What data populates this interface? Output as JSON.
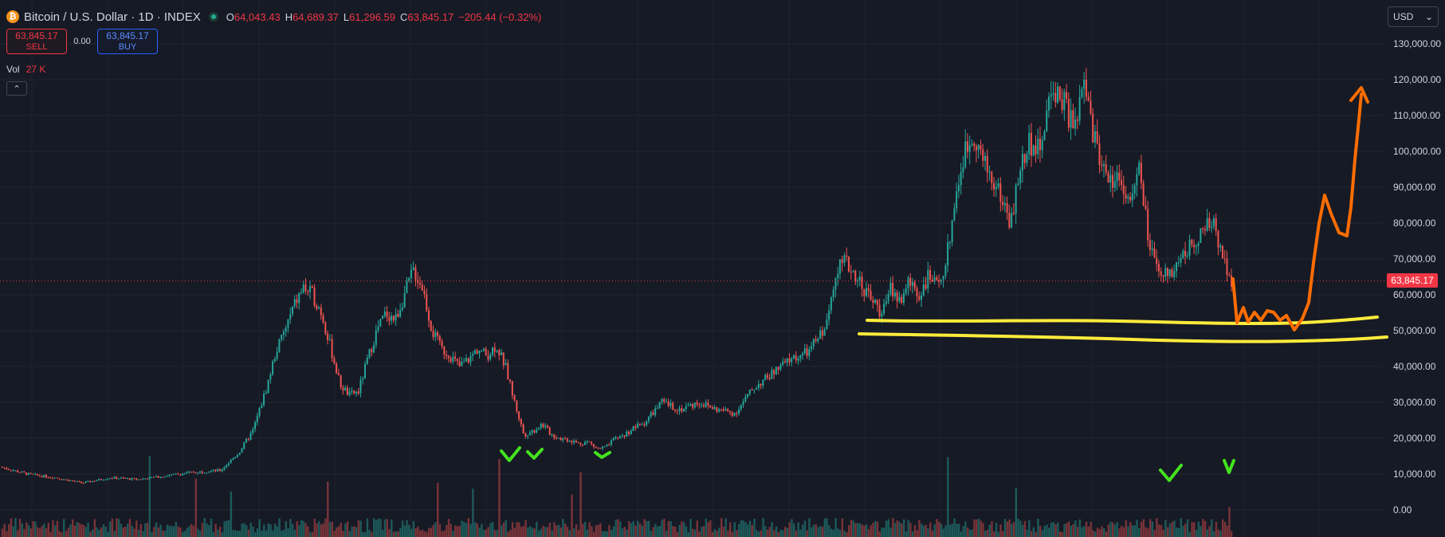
{
  "header": {
    "symbol_title": "Bitcoin / U.S. Dollar · 1D · INDEX",
    "coin_icon": "bitcoin-icon",
    "ohlc": {
      "open_label": "O",
      "open": "64,043.43",
      "high_label": "H",
      "high": "64,689.37",
      "low_label": "L",
      "low": "61,296.59",
      "close_label": "C",
      "close": "63,845.17",
      "change": "−205.44 (−0.32%)"
    }
  },
  "trade": {
    "sell_price": "63,845.17",
    "sell_label": "SELL",
    "spread": "0.00",
    "buy_price": "63,845.17",
    "buy_label": "BUY"
  },
  "volume": {
    "label": "Vol",
    "value": "27 K"
  },
  "currency": {
    "selected": "USD"
  },
  "price_scale": {
    "ticks": [
      "130,000.00",
      "120,000.00",
      "110,000.00",
      "100,000.00",
      "90,000.00",
      "80,000.00",
      "70,000.00",
      "60,000.00",
      "50,000.00",
      "40,000.00",
      "30,000.00",
      "20,000.00",
      "10,000.00",
      "0.00"
    ],
    "current_price_label": "63,845.17"
  },
  "colors": {
    "background": "#161a25",
    "up": "#26a69a",
    "down": "#ef5350",
    "annotation_yellow": "#ffeb3b",
    "annotation_orange": "#ff6d00",
    "annotation_green": "#43e31e"
  },
  "chart_data": {
    "type": "line",
    "title": "Bitcoin / U.S. Dollar · 1D · INDEX",
    "xlabel": "",
    "ylabel": "",
    "ylim": [
      -5000,
      135000
    ],
    "grid": true,
    "series": [
      {
        "x": [
          0,
          30,
          60,
          90,
          120,
          150,
          180,
          210,
          240,
          260,
          275,
          290,
          300,
          310,
          320,
          330,
          340,
          350,
          360,
          370,
          380,
          390,
          400,
          410,
          420,
          430,
          440,
          450,
          460,
          470,
          480,
          490,
          500,
          510,
          520,
          530,
          540,
          550,
          560,
          570,
          580,
          590,
          600,
          610,
          620,
          630,
          640,
          650,
          660,
          670,
          680,
          690,
          700,
          720,
          740,
          760,
          780,
          800,
          820,
          840,
          860,
          880,
          900,
          910,
          920,
          930,
          940,
          950,
          960,
          970,
          980,
          990,
          1000,
          1010,
          1020,
          1030,
          1040,
          1050,
          1060,
          1070,
          1080,
          1090,
          1100,
          1110,
          1120,
          1130,
          1140,
          1150,
          1160,
          1170,
          1180,
          1190,
          1200,
          1210,
          1220,
          1230,
          1240,
          1250,
          1260,
          1270,
          1280,
          1290,
          1300,
          1310,
          1320,
          1330,
          1340
        ],
        "values": [
          12000,
          10000,
          9000,
          7500,
          9000,
          8500,
          9500,
          10500,
          11000,
          16000,
          22000,
          34000,
          44000,
          50000,
          57000,
          62000,
          60000,
          55000,
          45000,
          35000,
          32000,
          33000,
          42000,
          50000,
          55000,
          53000,
          60000,
          67000,
          62000,
          50000,
          45000,
          43000,
          40000,
          42000,
          45000,
          43000,
          46000,
          40000,
          30000,
          21000,
          22000,
          24000,
          21000,
          20000,
          19500,
          18500,
          19000,
          17000,
          17500,
          20000,
          21000,
          23000,
          24000,
          30000,
          28000,
          30000,
          28000,
          27000,
          34000,
          38000,
          42000,
          44000,
          52000,
          68000,
          69000,
          66000,
          62000,
          58000,
          55000,
          62000,
          58000,
          64000,
          60000,
          65000,
          62000,
          70000,
          88000,
          100000,
          105000,
          97000,
          92000,
          87000,
          80000,
          95000,
          103000,
          100000,
          112000,
          118000,
          112000,
          106000,
          119000,
          104000,
          96000,
          92000,
          93000,
          85000,
          95000,
          75000,
          65000,
          66000,
          68000,
          72000,
          75000,
          78000,
          80000,
          72000,
          63845
        ]
      }
    ],
    "annotations": {
      "yellow_support_lines": [
        52000,
        48000
      ],
      "orange_projection": "down then up arrow",
      "green_checkmarks": 5
    }
  }
}
